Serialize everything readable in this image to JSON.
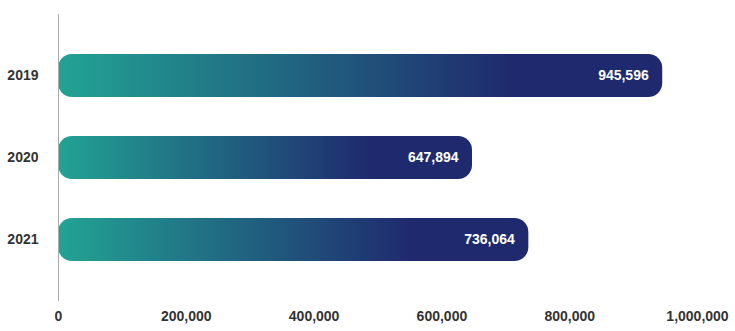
{
  "chart_data": {
    "type": "bar",
    "orientation": "horizontal",
    "categories": [
      "2019",
      "2020",
      "2021"
    ],
    "values": [
      945596,
      647894,
      736064
    ],
    "value_labels": [
      "945,596",
      "647,894",
      "736,064"
    ],
    "data_labels": true,
    "color": "#1f2a6e",
    "xlim": [
      0,
      1000000
    ],
    "xticks": [
      0,
      {
        "value": 200000,
        "label": "200,000"
      },
      {
        "value": 400000,
        "label": "400,000"
      },
      {
        "value": 600000,
        "label": "600,000"
      },
      {
        "value": 800000,
        "label": "800,000"
      },
      {
        "value": 1000000,
        "label": "1,000,000"
      }
    ],
    "grid": false
  }
}
